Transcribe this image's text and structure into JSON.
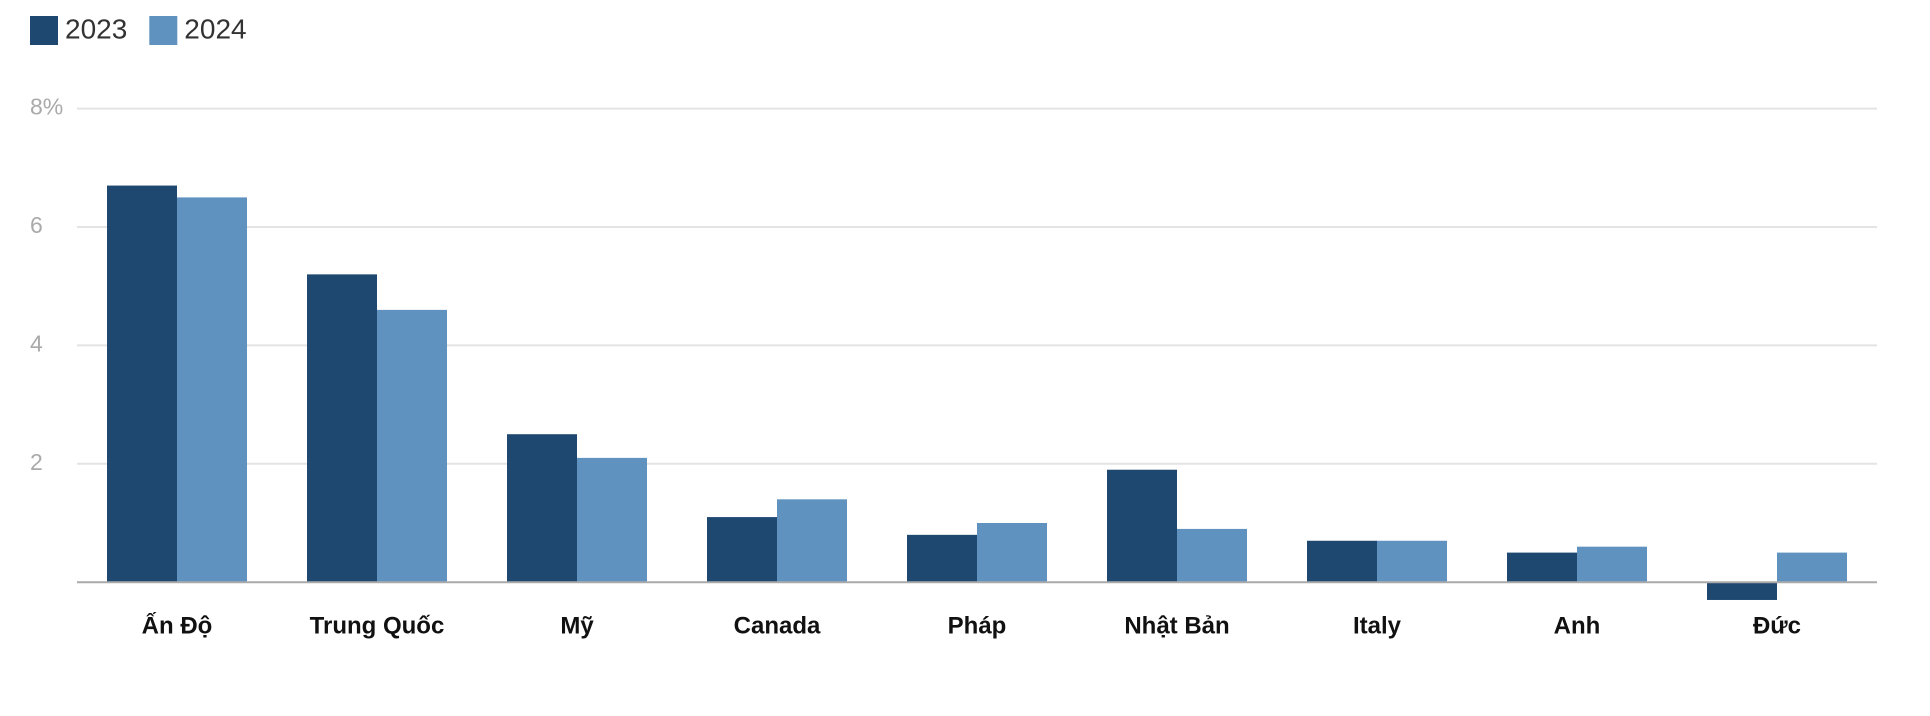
{
  "chart_data": {
    "type": "bar",
    "categories": [
      "Ấn Độ",
      "Trung Quốc",
      "Mỹ",
      "Canada",
      "Pháp",
      "Nhật Bản",
      "Italy",
      "Anh",
      "Đức"
    ],
    "series": [
      {
        "name": "2023",
        "color": "#1f4870",
        "values": [
          6.7,
          5.2,
          2.5,
          1.1,
          0.8,
          1.9,
          0.7,
          0.5,
          -0.3
        ]
      },
      {
        "name": "2024",
        "color": "#6092c0",
        "values": [
          6.5,
          4.6,
          2.1,
          1.4,
          1.0,
          0.9,
          0.7,
          0.6,
          0.5
        ]
      }
    ],
    "ylim": [
      -1,
      8
    ],
    "yticks": [
      2,
      4,
      6,
      {
        "value": 8,
        "label": "8%"
      }
    ],
    "grid": true,
    "legend": "top-left"
  }
}
